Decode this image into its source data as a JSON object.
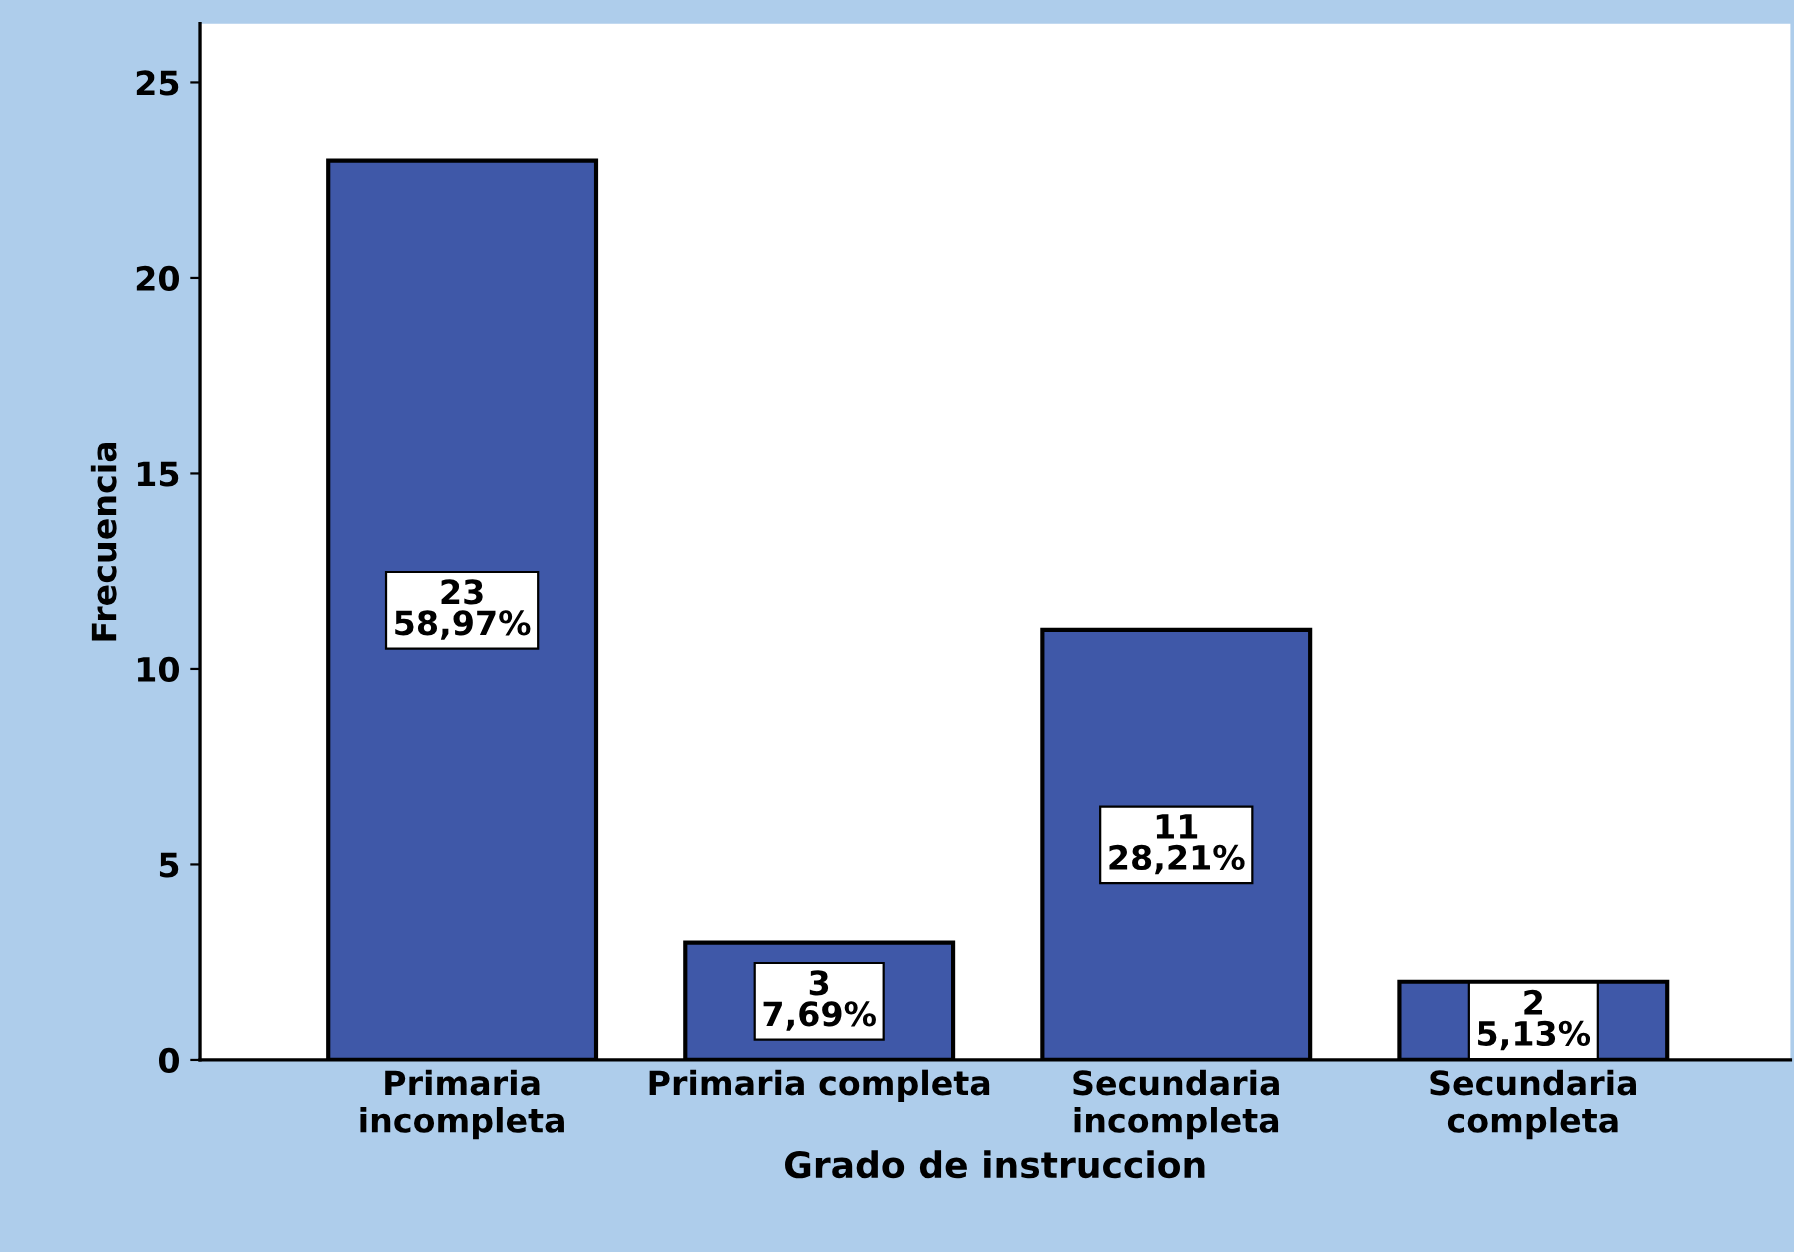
{
  "chart_data": {
    "type": "bar",
    "xlabel": "Grado de instruccion",
    "ylabel": "Frecuencia",
    "categories": [
      "Primaria\nincompleta",
      "Primaria completa",
      "Secundaria\nincompleta",
      "Secundaria\ncompleta"
    ],
    "values": [
      23,
      3,
      11,
      2
    ],
    "color": "#3f58a8",
    "value_labels": [
      "23\n58,97%",
      "3\n7,69%",
      "11\n28,21%",
      "2\n5,13%"
    ],
    "ylim": [
      0,
      26.5
    ],
    "yticks": [
      0,
      5,
      10,
      15,
      20,
      25
    ],
    "grid": false,
    "legend": false
  }
}
